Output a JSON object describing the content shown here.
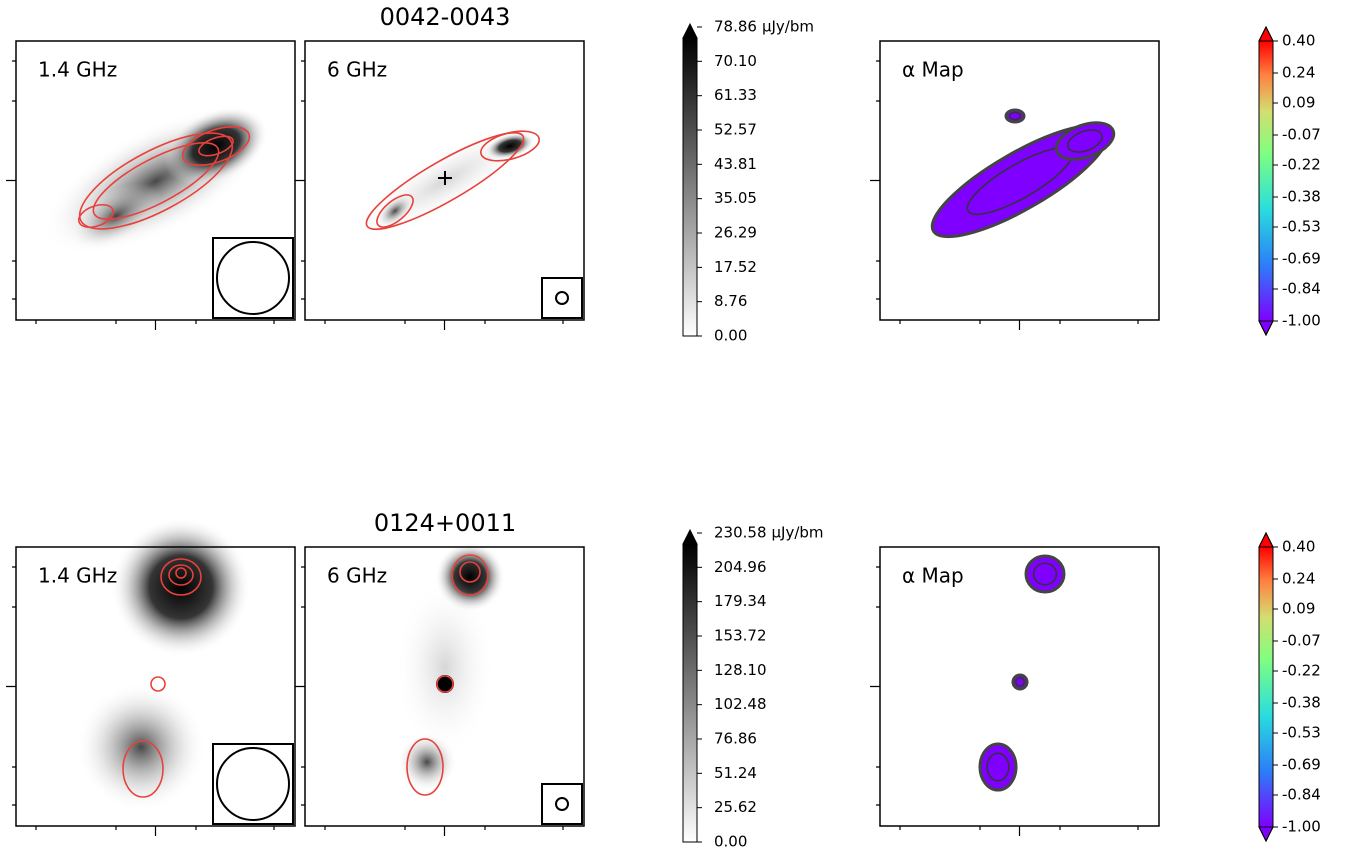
{
  "chart_data": [
    {
      "type": "image",
      "title": "0042-0043",
      "panels": [
        "1.4 GHz",
        "6 GHz",
        "α Map"
      ],
      "colorbar": {
        "unit": "μJy/bm",
        "ylim": [
          0,
          78.86
        ],
        "yticks": [
          {
            "value": 0,
            "label": "0.00"
          },
          8.76,
          17.52,
          26.29,
          35.05,
          43.81,
          52.57,
          61.33,
          {
            "value": 70.1,
            "label": "70.10"
          },
          78.86
        ]
      },
      "alpha_colorbar": {
        "ylim": [
          -1,
          0.4
        ],
        "yticks": [
          {
            "value": -1,
            "label": "-1.00"
          },
          -0.84,
          -0.69,
          -0.53,
          -0.38,
          -0.22,
          -0.07,
          0.09,
          0.24,
          {
            "value": 0.4,
            "label": "0.40"
          }
        ]
      }
    },
    {
      "type": "image",
      "title": "0124+0011",
      "panels": [
        "1.4 GHz",
        "6 GHz",
        "α Map"
      ],
      "colorbar": {
        "unit": "μJy/bm",
        "ylim": [
          0,
          230.58
        ],
        "yticks": [
          {
            "value": 0,
            "label": "0.00"
          },
          25.62,
          51.24,
          76.86,
          102.48,
          {
            "value": 128.1,
            "label": "128.10"
          },
          153.72,
          179.34,
          204.96,
          230.58
        ]
      },
      "alpha_colorbar": {
        "ylim": [
          -1,
          0.4
        ],
        "yticks": [
          {
            "value": -1,
            "label": "-1.00"
          },
          -0.84,
          -0.69,
          -0.53,
          -0.38,
          -0.22,
          -0.07,
          0.09,
          0.24,
          {
            "value": 0.4,
            "label": "0.40"
          }
        ]
      }
    }
  ]
}
